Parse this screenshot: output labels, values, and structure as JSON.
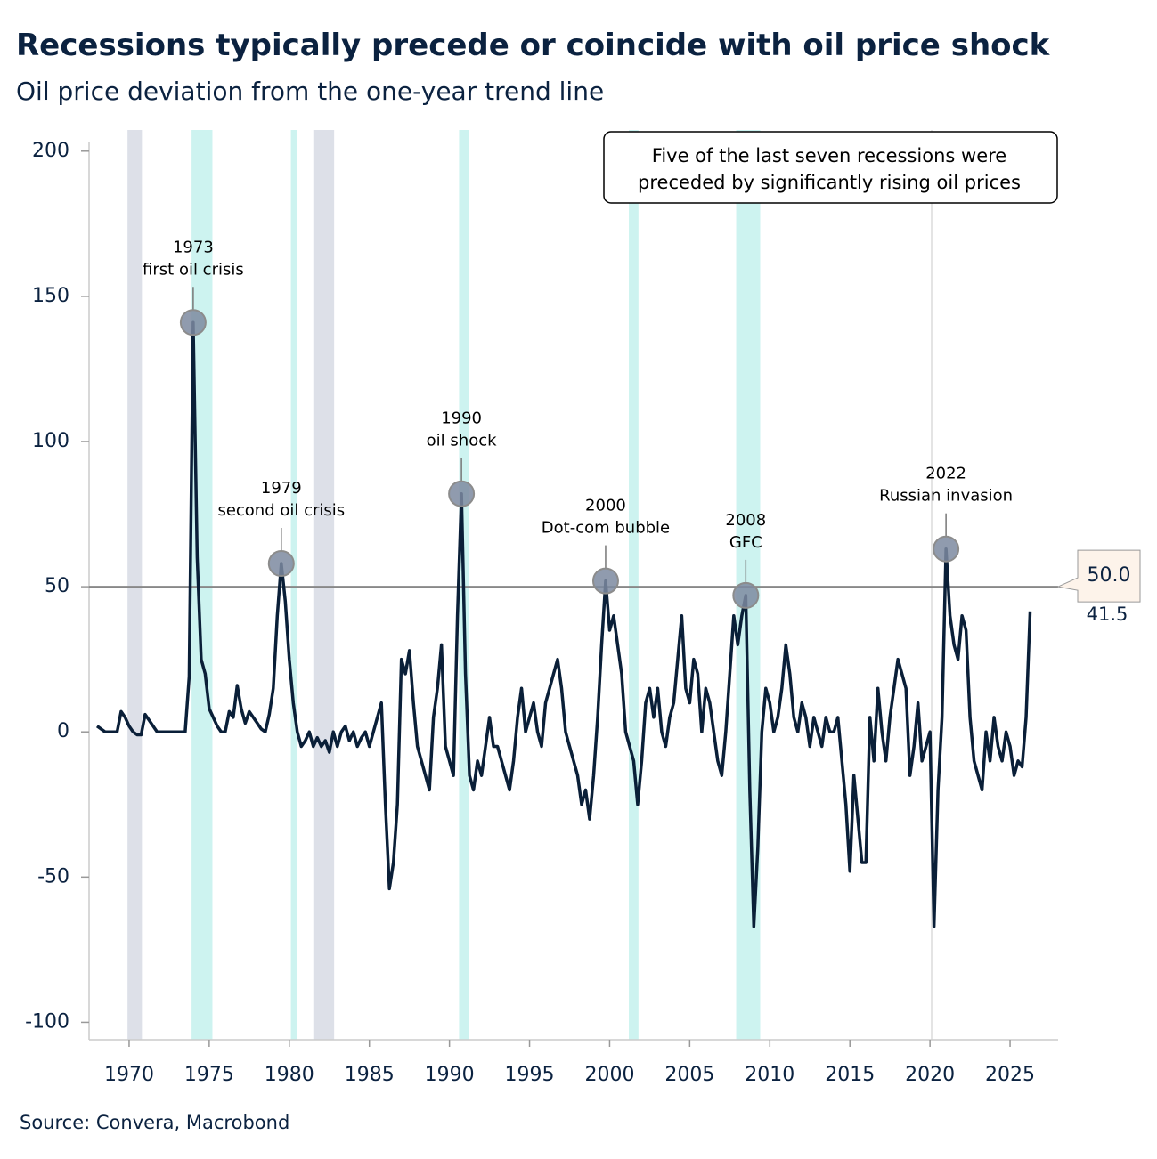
{
  "chart_data": {
    "type": "line",
    "title": "Recessions typically precede or coincide with oil price shock",
    "subtitle": "Oil price deviation from the one-year trend line",
    "source": "Source: Convera, Macrobond",
    "note": [
      "Five of the last seven recessions were",
      "preceded by significantly rising oil prices"
    ],
    "xlim": [
      1967.5,
      2028
    ],
    "ylim": [
      -106,
      203
    ],
    "xticks": [
      1970,
      1975,
      1980,
      1985,
      1990,
      1995,
      2000,
      2005,
      2010,
      2015,
      2020,
      2025
    ],
    "yticks": [
      -100,
      -50,
      0,
      50,
      100,
      150,
      200
    ],
    "hline": {
      "value": 50,
      "label": "50.0",
      "color": "#888888"
    },
    "shaded_periods": [
      {
        "start": 1969.9,
        "end": 1970.8,
        "color": "#dde0e8"
      },
      {
        "start": 1973.9,
        "end": 1975.2,
        "color": "#cdf3f0"
      },
      {
        "start": 1980.1,
        "end": 1980.5,
        "color": "#cdf3f0"
      },
      {
        "start": 1981.5,
        "end": 1982.8,
        "color": "#dde0e8"
      },
      {
        "start": 1990.6,
        "end": 1991.2,
        "color": "#cdf3f0"
      },
      {
        "start": 2001.2,
        "end": 2001.8,
        "color": "#cdf3f0"
      },
      {
        "start": 2007.9,
        "end": 2009.4,
        "color": "#cdf3f0"
      },
      {
        "start": 2020.05,
        "end": 2020.2,
        "color": "#e4e4e4"
      }
    ],
    "annotations": [
      {
        "x": 1974.0,
        "y": 141,
        "lines": [
          "1973",
          "first oil crisis"
        ]
      },
      {
        "x": 1979.5,
        "y": 58,
        "lines": [
          "1979",
          "second oil crisis"
        ]
      },
      {
        "x": 1990.75,
        "y": 82,
        "lines": [
          "1990",
          "oil shock"
        ]
      },
      {
        "x": 1999.75,
        "y": 52,
        "lines": [
          "2000",
          "Dot-com bubble"
        ]
      },
      {
        "x": 2008.5,
        "y": 47,
        "lines": [
          "2008",
          "GFC"
        ]
      },
      {
        "x": 2021.0,
        "y": 63,
        "lines": [
          "2022",
          "Russian invasion"
        ]
      }
    ],
    "x": [
      1968,
      1968.25,
      1968.5,
      1968.75,
      1969,
      1969.25,
      1969.5,
      1969.75,
      1970,
      1970.25,
      1970.5,
      1970.75,
      1971,
      1971.25,
      1971.5,
      1971.75,
      1972,
      1972.25,
      1972.5,
      1972.75,
      1973,
      1973.25,
      1973.5,
      1973.75,
      1974,
      1974.25,
      1974.5,
      1974.75,
      1975,
      1975.25,
      1975.5,
      1975.75,
      1976,
      1976.25,
      1976.5,
      1976.75,
      1977,
      1977.25,
      1977.5,
      1977.75,
      1978,
      1978.25,
      1978.5,
      1978.75,
      1979,
      1979.25,
      1979.5,
      1979.75,
      1980,
      1980.25,
      1980.5,
      1980.75,
      1981,
      1981.25,
      1981.5,
      1981.75,
      1982,
      1982.25,
      1982.5,
      1982.75,
      1983,
      1983.25,
      1983.5,
      1983.75,
      1984,
      1984.25,
      1984.5,
      1984.75,
      1985,
      1985.25,
      1985.5,
      1985.75,
      1986,
      1986.25,
      1986.5,
      1986.75,
      1987,
      1987.25,
      1987.5,
      1987.75,
      1988,
      1988.25,
      1988.5,
      1988.75,
      1989,
      1989.25,
      1989.5,
      1989.75,
      1990,
      1990.25,
      1990.5,
      1990.75,
      1991,
      1991.25,
      1991.5,
      1991.75,
      1992,
      1992.25,
      1992.5,
      1992.75,
      1993,
      1993.25,
      1993.5,
      1993.75,
      1994,
      1994.25,
      1994.5,
      1994.75,
      1995,
      1995.25,
      1995.5,
      1995.75,
      1996,
      1996.25,
      1996.5,
      1996.75,
      1997,
      1997.25,
      1997.5,
      1997.75,
      1998,
      1998.25,
      1998.5,
      1998.75,
      1999,
      1999.25,
      1999.5,
      1999.75,
      2000,
      2000.25,
      2000.5,
      2000.75,
      2001,
      2001.25,
      2001.5,
      2001.75,
      2002,
      2002.25,
      2002.5,
      2002.75,
      2003,
      2003.25,
      2003.5,
      2003.75,
      2004,
      2004.25,
      2004.5,
      2004.75,
      2005,
      2005.25,
      2005.5,
      2005.75,
      2006,
      2006.25,
      2006.5,
      2006.75,
      2007,
      2007.25,
      2007.5,
      2007.75,
      2008,
      2008.25,
      2008.5,
      2008.75,
      2009,
      2009.25,
      2009.5,
      2009.75,
      2010,
      2010.25,
      2010.5,
      2010.75,
      2011,
      2011.25,
      2011.5,
      2011.75,
      2012,
      2012.25,
      2012.5,
      2012.75,
      2013,
      2013.25,
      2013.5,
      2013.75,
      2014,
      2014.25,
      2014.5,
      2014.75,
      2015,
      2015.25,
      2015.5,
      2015.75,
      2016,
      2016.25,
      2016.5,
      2016.75,
      2017,
      2017.25,
      2017.5,
      2017.75,
      2018,
      2018.25,
      2018.5,
      2018.75,
      2019,
      2019.25,
      2019.5,
      2019.75,
      2020,
      2020.25,
      2020.5,
      2020.75,
      2021,
      2021.25,
      2021.5,
      2021.75,
      2022,
      2022.25,
      2022.5,
      2022.75,
      2023,
      2023.25,
      2023.5,
      2023.75,
      2024,
      2024.25,
      2024.5,
      2024.75,
      2025,
      2025.25,
      2025.5,
      2025.75,
      2026,
      2026.25
    ],
    "series": [
      {
        "color": "#0a1f38",
        "values": [
          2,
          1,
          0,
          0,
          0,
          0,
          7,
          5,
          2,
          0,
          -1,
          -1,
          6,
          4,
          2,
          0,
          0,
          0,
          0,
          0,
          0,
          0,
          0,
          19,
          141,
          60,
          25,
          20,
          8,
          5,
          2,
          0,
          0,
          7,
          5,
          16,
          8,
          3,
          7,
          5,
          3,
          1,
          0,
          6,
          15,
          40,
          58,
          45,
          25,
          10,
          0,
          -5,
          -3,
          0,
          -5,
          -2,
          -5,
          -3,
          -7,
          0,
          -5,
          0,
          2,
          -3,
          0,
          -5,
          -2,
          0,
          -5,
          0,
          5,
          10,
          -25,
          -54,
          -45,
          -25,
          25,
          20,
          28,
          10,
          -5,
          -10,
          -15,
          -20,
          5,
          15,
          30,
          -5,
          -10,
          -15,
          40,
          82,
          20,
          -15,
          -20,
          -10,
          -15,
          -5,
          5,
          -5,
          -5,
          -10,
          -15,
          -20,
          -10,
          5,
          15,
          0,
          5,
          10,
          0,
          -5,
          10,
          15,
          20,
          25,
          15,
          0,
          -5,
          -10,
          -15,
          -25,
          -20,
          -30,
          -15,
          5,
          30,
          52,
          35,
          40,
          30,
          20,
          0,
          -5,
          -10,
          -25,
          -10,
          10,
          15,
          5,
          15,
          0,
          -5,
          5,
          10,
          25,
          40,
          15,
          10,
          25,
          20,
          0,
          15,
          10,
          0,
          -10,
          -15,
          0,
          20,
          40,
          30,
          40,
          47,
          -20,
          -67,
          -40,
          0,
          15,
          10,
          0,
          5,
          15,
          30,
          20,
          5,
          0,
          10,
          5,
          -5,
          5,
          0,
          -5,
          5,
          0,
          0,
          5,
          -10,
          -25,
          -48,
          -15,
          -30,
          -45,
          -45,
          5,
          -10,
          15,
          0,
          -10,
          5,
          15,
          25,
          20,
          15,
          -15,
          -5,
          10,
          -10,
          -5,
          0,
          -67,
          -20,
          5,
          63,
          40,
          30,
          25,
          40,
          35,
          5,
          -10,
          -15,
          -20,
          0,
          -10,
          5,
          -5,
          -10,
          0,
          -5,
          -15,
          -10,
          -12,
          5,
          41.5
        ]
      }
    ]
  }
}
